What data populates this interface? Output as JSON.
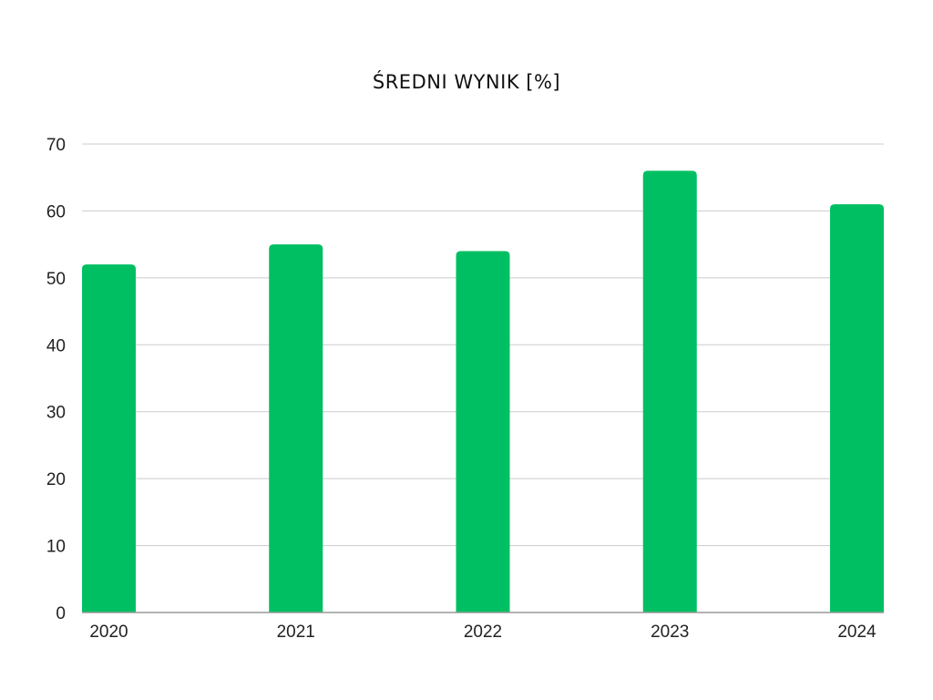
{
  "chart_data": {
    "type": "bar",
    "title": "ŚREDNI WYNIK [%]",
    "xlabel": "",
    "ylabel": "",
    "categories": [
      "2020",
      "2021",
      "2022",
      "2023",
      "2024"
    ],
    "values": [
      52,
      55,
      54,
      66,
      61
    ],
    "ylim": [
      0,
      70
    ],
    "yticks": [
      0,
      10,
      20,
      30,
      40,
      50,
      60,
      70
    ],
    "grid": true,
    "legend": "none",
    "bar_color": "#00BF63",
    "grid_color": "#CCCCCC",
    "axis_color": "#999999"
  }
}
